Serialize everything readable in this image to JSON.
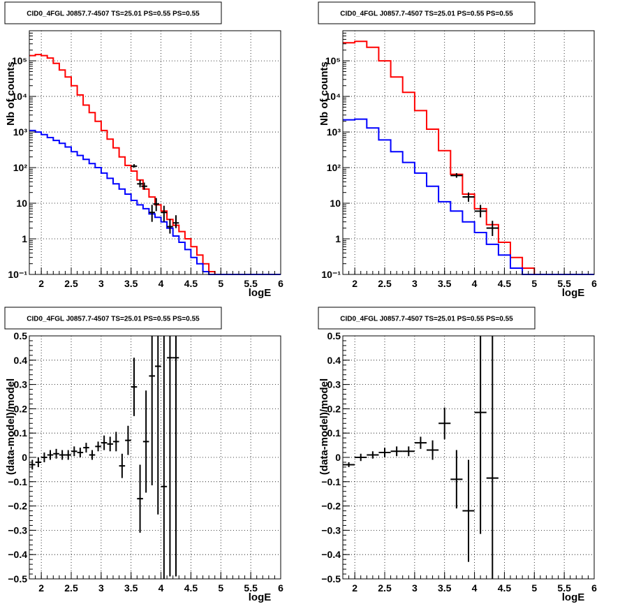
{
  "chart_data": [
    {
      "type": "line",
      "title": "CID0_4FGL J0857.7-4507 TS=25.01 PS=0.55 PS=0.55",
      "xlabel": "logE",
      "ylabel": "Nb of counts",
      "log_y": true,
      "xlim": [
        1.8,
        6.0
      ],
      "ylim": [
        0.1,
        700000
      ],
      "grid": true,
      "xticks": [
        "2",
        "2.5",
        "3",
        "3.5",
        "4",
        "4.5",
        "5",
        "5.5",
        "6"
      ],
      "yticks": [
        "10⁻¹",
        "1",
        "10",
        "10²",
        "10³",
        "10⁴",
        "10⁵"
      ],
      "series": [
        {
          "type": "histogram",
          "color": "#ff0000",
          "bins": [
            1.8,
            1.9,
            2.0,
            2.1,
            2.2,
            2.3,
            2.4,
            2.5,
            2.6,
            2.7,
            2.8,
            2.9,
            3.0,
            3.1,
            3.2,
            3.3,
            3.4,
            3.5,
            3.6,
            3.7,
            3.8,
            3.9,
            4.0,
            4.1,
            4.2,
            4.3,
            4.4,
            4.5,
            4.6,
            4.7,
            4.8,
            4.9,
            5.0,
            5.1,
            5.2,
            5.3,
            5.4,
            5.5,
            5.6,
            5.7,
            5.8,
            5.9,
            6.0
          ],
          "values": [
            140000,
            150000,
            140000,
            120000,
            85000,
            55000,
            35000,
            20000,
            11000,
            5700,
            3500,
            2000,
            1100,
            630,
            360,
            200,
            115,
            80,
            45,
            25,
            15,
            9,
            6,
            3.5,
            2.4,
            1.6,
            1.0,
            0.6,
            0.35,
            0.2,
            0.12,
            0.1,
            0.1,
            0.1,
            0.1,
            0.1,
            0.1,
            0.1,
            0.1,
            0.1,
            0.1,
            0.1
          ]
        },
        {
          "type": "histogram",
          "color": "#0000ff",
          "bins": [
            1.8,
            1.9,
            2.0,
            2.1,
            2.2,
            2.3,
            2.4,
            2.5,
            2.6,
            2.7,
            2.8,
            2.9,
            3.0,
            3.1,
            3.2,
            3.3,
            3.4,
            3.5,
            3.6,
            3.7,
            3.8,
            3.9,
            4.0,
            4.1,
            4.2,
            4.3,
            4.4,
            4.5,
            4.6,
            4.7,
            4.8,
            4.9,
            5.0,
            5.1,
            5.2,
            5.3,
            5.4,
            5.5,
            5.6,
            5.7,
            5.8,
            5.9,
            6.0
          ],
          "values": [
            1100,
            1000,
            850,
            700,
            580,
            480,
            380,
            280,
            220,
            170,
            130,
            100,
            70,
            50,
            35,
            25,
            18,
            12,
            9,
            7,
            5,
            4,
            3,
            2,
            1.2,
            0.8,
            0.5,
            0.3,
            0.2,
            0.12,
            0.1,
            0.1,
            0.1,
            0.1,
            0.1,
            0.1,
            0.1,
            0.1,
            0.1,
            0.1,
            0.1,
            0.1
          ]
        },
        {
          "type": "points",
          "color": "#000000",
          "x": [
            3.55,
            3.65,
            3.72,
            3.85,
            3.92,
            4.05,
            4.15,
            4.25
          ],
          "y": [
            110,
            35,
            30,
            5.5,
            9.5,
            5.5,
            2.2,
            2.8
          ],
          "xerr": [
            0.05,
            0.05,
            0.05,
            0.05,
            0.05,
            0.05,
            0.05,
            0.05
          ],
          "yerr_low": [
            100,
            28,
            24,
            3,
            6,
            3,
            1.4,
            2
          ],
          "yerr_high": [
            125,
            45,
            38,
            9,
            14,
            8.5,
            3.6,
            4.6
          ]
        }
      ]
    },
    {
      "type": "line",
      "title": "CID0_4FGL J0857.7-4507 TS=25.01 PS=0.55 PS=0.55",
      "xlabel": "logE",
      "ylabel": "Nb of counts",
      "log_y": true,
      "xlim": [
        1.8,
        6.0
      ],
      "ylim": [
        0.1,
        700000
      ],
      "grid": true,
      "xticks": [
        "2",
        "2.5",
        "3",
        "3.5",
        "4",
        "4.5",
        "5",
        "5.5",
        "6"
      ],
      "yticks": [
        "10⁻¹",
        "1",
        "10",
        "10²",
        "10³",
        "10⁴",
        "10⁵"
      ],
      "series": [
        {
          "type": "histogram",
          "color": "#ff0000",
          "bins": [
            1.8,
            2.0,
            2.2,
            2.4,
            2.6,
            2.8,
            3.0,
            3.2,
            3.4,
            3.6,
            3.8,
            4.0,
            4.2,
            4.4,
            4.6,
            4.8,
            5.0,
            5.2,
            5.4,
            5.6,
            5.8,
            6.0
          ],
          "values": [
            320000,
            350000,
            240000,
            100000,
            35000,
            13000,
            4000,
            1200,
            300,
            65,
            18,
            7,
            2.5,
            0.8,
            0.3,
            0.15,
            0.1,
            0.1,
            0.1,
            0.1,
            0.1
          ]
        },
        {
          "type": "histogram",
          "color": "#0000ff",
          "bins": [
            1.8,
            2.0,
            2.2,
            2.4,
            2.6,
            2.8,
            3.0,
            3.2,
            3.4,
            3.6,
            3.8,
            4.0,
            4.2,
            4.4,
            4.6,
            4.8,
            5.0,
            5.2,
            5.4,
            5.6,
            5.8,
            6.0
          ],
          "values": [
            2200,
            2300,
            1300,
            600,
            280,
            140,
            70,
            30,
            11,
            6,
            3,
            1.5,
            0.7,
            0.35,
            0.15,
            0.1,
            0.1,
            0.1,
            0.1,
            0.1,
            0.1
          ]
        },
        {
          "type": "points",
          "color": "#000000",
          "x": [
            3.7,
            3.9,
            4.1,
            4.3
          ],
          "y": [
            60,
            15,
            6,
            2
          ],
          "xerr": [
            0.1,
            0.1,
            0.1,
            0.1
          ],
          "yerr_low": [
            52,
            11,
            4,
            1.2
          ],
          "yerr_high": [
            70,
            20,
            9,
            3.2
          ]
        }
      ]
    },
    {
      "type": "scatter",
      "title": "CID0_4FGL J0857.7-4507 TS=25.01 PS=0.55 PS=0.55",
      "xlabel": "logE",
      "ylabel": "(data-model)/model",
      "log_y": false,
      "xlim": [
        1.8,
        6.0
      ],
      "ylim": [
        -0.5,
        0.5
      ],
      "grid": true,
      "xticks": [
        "2",
        "2.5",
        "3",
        "3.5",
        "4",
        "4.5",
        "5",
        "5.5",
        "6"
      ],
      "yticks": [
        "−0.5",
        "−0.4",
        "−0.3",
        "−0.2",
        "−0.1",
        "0",
        "0.1",
        "0.2",
        "0.3",
        "0.4",
        "0.5"
      ],
      "series": [
        {
          "type": "points",
          "color": "#000000",
          "x": [
            1.85,
            1.95,
            2.05,
            2.15,
            2.25,
            2.35,
            2.45,
            2.55,
            2.65,
            2.75,
            2.85,
            2.95,
            3.05,
            3.15,
            3.25,
            3.35,
            3.45,
            3.55,
            3.65,
            3.75,
            3.85,
            3.95,
            4.05,
            4.15,
            4.25
          ],
          "y": [
            -0.03,
            -0.02,
            0.0,
            0.01,
            0.015,
            0.01,
            0.01,
            0.025,
            0.02,
            0.04,
            0.01,
            0.045,
            0.06,
            0.055,
            0.065,
            -0.035,
            0.07,
            0.29,
            -0.17,
            0.065,
            0.335,
            0.375,
            -0.12,
            0.41,
            0.41
          ],
          "xerr": [
            0.05,
            0.05,
            0.05,
            0.05,
            0.05,
            0.05,
            0.05,
            0.05,
            0.05,
            0.05,
            0.05,
            0.05,
            0.05,
            0.05,
            0.05,
            0.05,
            0.05,
            0.05,
            0.05,
            0.05,
            0.05,
            0.05,
            0.05,
            0.05,
            0.05
          ],
          "yerr": [
            0.02,
            0.02,
            0.02,
            0.02,
            0.02,
            0.02,
            0.02,
            0.02,
            0.02,
            0.02,
            0.02,
            0.02,
            0.03,
            0.03,
            0.04,
            0.05,
            0.06,
            0.12,
            0.14,
            0.21,
            0.45,
            0.61,
            0.7,
            0.9,
            0.9
          ]
        }
      ]
    },
    {
      "type": "scatter",
      "title": "CID0_4FGL J0857.7-4507 TS=25.01 PS=0.55 PS=0.55",
      "xlabel": "logE",
      "ylabel": "(data-model)/model",
      "log_y": false,
      "xlim": [
        1.8,
        6.0
      ],
      "ylim": [
        -0.5,
        0.5
      ],
      "grid": true,
      "xticks": [
        "2",
        "2.5",
        "3",
        "3.5",
        "4",
        "4.5",
        "5",
        "5.5",
        "6"
      ],
      "yticks": [
        "−0.5",
        "−0.4",
        "−0.3",
        "−0.2",
        "−0.1",
        "0",
        "0.1",
        "0.2",
        "0.3",
        "0.4",
        "0.5"
      ],
      "series": [
        {
          "type": "points",
          "color": "#000000",
          "x": [
            1.9,
            2.1,
            2.3,
            2.5,
            2.7,
            2.9,
            3.1,
            3.3,
            3.5,
            3.7,
            3.9,
            4.1,
            4.3
          ],
          "y": [
            -0.03,
            0.0,
            0.01,
            0.02,
            0.025,
            0.025,
            0.06,
            0.03,
            0.14,
            -0.09,
            -0.22,
            0.185,
            -0.085
          ],
          "xerr": [
            0.1,
            0.1,
            0.1,
            0.1,
            0.1,
            0.1,
            0.1,
            0.1,
            0.1,
            0.1,
            0.1,
            0.1,
            0.1
          ],
          "yerr": [
            0.01,
            0.015,
            0.015,
            0.02,
            0.02,
            0.02,
            0.025,
            0.04,
            0.065,
            0.12,
            0.21,
            0.5,
            0.7
          ]
        }
      ]
    }
  ]
}
